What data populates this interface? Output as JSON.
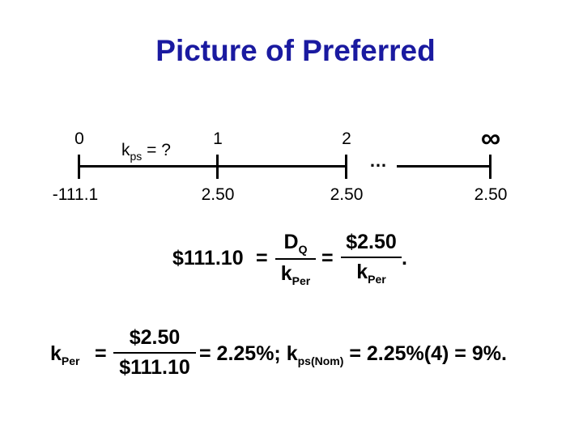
{
  "title": "Picture of Preferred",
  "timeline": {
    "periods": [
      "0",
      "1",
      "2",
      "∞"
    ],
    "rate_label": "k",
    "rate_sub": "ps",
    "rate_suffix": " = ?",
    "ellipsis": "…",
    "cash_flows": [
      "-111.1",
      "2.50",
      "2.50",
      "2.50"
    ]
  },
  "equation1": {
    "lhs": "$111.10",
    "eq": "=",
    "num1": "D",
    "num1_sub": "Q",
    "den1": "k",
    "den1_sub": "Per",
    "eq2": "=",
    "num2": "$2.50",
    "den2": "k",
    "den2_sub": "Per",
    "end": "."
  },
  "equation2": {
    "lhs": "k",
    "lhs_sub": "Per",
    "eq": "=",
    "num": "$2.50",
    "den": "$111.10",
    "result": "= 2.25%; k",
    "result_sub": "ps(Nom)",
    "result_end": " = 2.25%(4) = 9%."
  }
}
